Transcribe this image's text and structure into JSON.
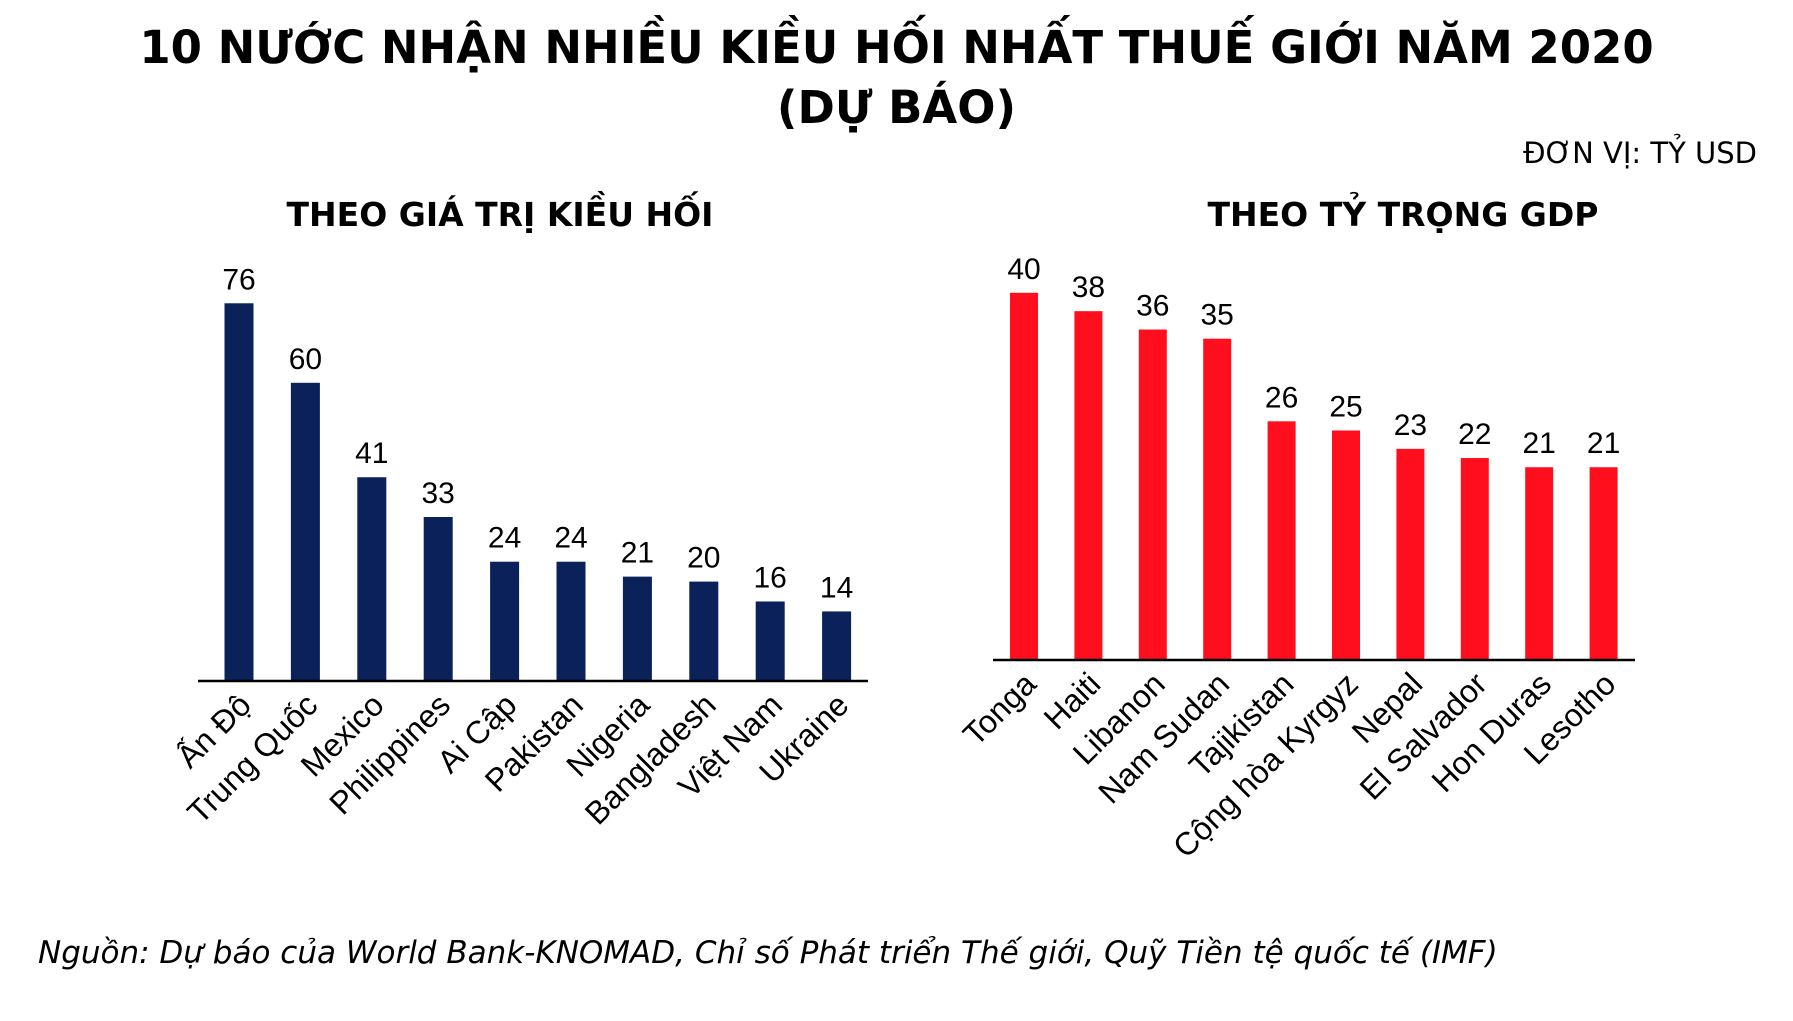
{
  "title_line1": "10 NƯỚC NHẬN NHIỀU KIỀU HỐI NHẤT THUẾ GIỚI NĂM 2020",
  "title_line2": "(DỰ BÁO)",
  "unit": "ĐƠN VỊ: TỶ USD",
  "source": "Nguồn: Dự báo của World Bank-KNOMAD, Chỉ số Phát triển Thế giới, Quỹ Tiền tệ quốc tế (IMF)",
  "chart_data": [
    {
      "type": "bar",
      "title": "THEO GIÁ TRỊ KIỀU HỐI",
      "categories": [
        "Ấn Độ",
        "Trung Quốc",
        "Mexico",
        "Philippines",
        "Ai Cập",
        "Pakistan",
        "Nigeria",
        "Bangladesh",
        "Việt Nam",
        "Ukraine"
      ],
      "values": [
        76,
        60,
        41,
        33,
        24,
        24,
        21,
        20,
        16,
        14
      ],
      "color": "#0b215a",
      "grid": false,
      "data_labels": true
    },
    {
      "type": "bar",
      "title": "THEO TỶ TRỌNG GDP",
      "categories": [
        "Tonga",
        "Haiti",
        "Libanon",
        "Nam Sudan",
        "Tajikistan",
        "Cộng hòa Kyrgyz",
        "Nepal",
        "El Salvador",
        "Hon Duras",
        "Lesotho"
      ],
      "values": [
        40,
        38,
        36,
        35,
        26,
        25,
        23,
        22,
        21,
        21
      ],
      "color": "#ff0f1e",
      "grid": false,
      "data_labels": true
    }
  ]
}
